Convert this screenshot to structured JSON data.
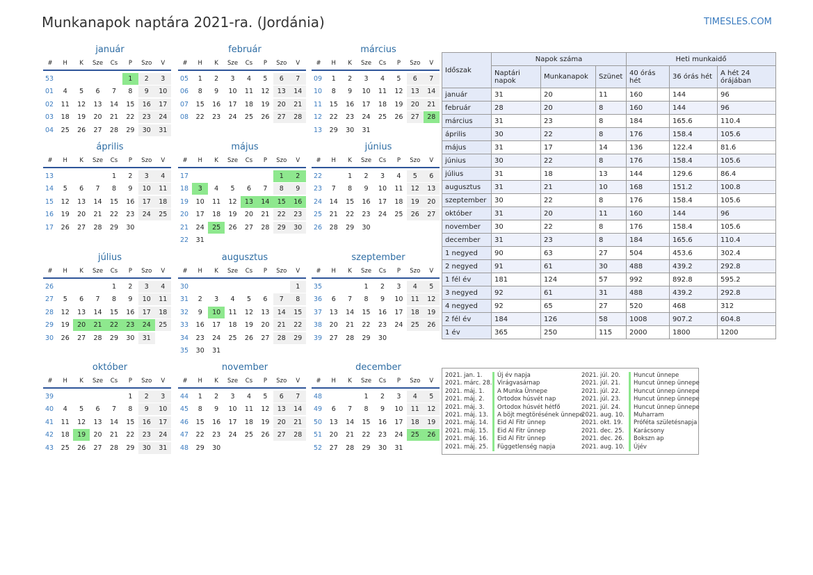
{
  "header": {
    "title": "Munkanapok naptára 2021-ra. (Jordánia)",
    "site": "TIMESLES.COM"
  },
  "weekday_headers": [
    "#",
    "H",
    "K",
    "Sze",
    "Cs",
    "P",
    "Szo",
    "V"
  ],
  "months": [
    {
      "name": "január",
      "weeks": [
        [
          53,
          "",
          "",
          "",
          "",
          1,
          2,
          3
        ],
        [
          "01",
          4,
          5,
          6,
          7,
          8,
          9,
          10
        ],
        [
          "02",
          11,
          12,
          13,
          14,
          15,
          16,
          17
        ],
        [
          "03",
          18,
          19,
          20,
          21,
          22,
          23,
          24
        ],
        [
          "04",
          25,
          26,
          27,
          28,
          29,
          30,
          31
        ]
      ],
      "holidays": [
        1
      ]
    },
    {
      "name": "február",
      "weeks": [
        [
          "05",
          1,
          2,
          3,
          4,
          5,
          6,
          7
        ],
        [
          "06",
          8,
          9,
          10,
          11,
          12,
          13,
          14
        ],
        [
          "07",
          15,
          16,
          17,
          18,
          19,
          20,
          21
        ],
        [
          "08",
          22,
          23,
          24,
          25,
          26,
          27,
          28
        ]
      ],
      "holidays": []
    },
    {
      "name": "március",
      "weeks": [
        [
          "09",
          1,
          2,
          3,
          4,
          5,
          6,
          7
        ],
        [
          10,
          8,
          9,
          10,
          11,
          12,
          13,
          14
        ],
        [
          11,
          15,
          16,
          17,
          18,
          19,
          20,
          21
        ],
        [
          12,
          22,
          23,
          24,
          25,
          26,
          27,
          28
        ],
        [
          13,
          29,
          30,
          31,
          "",
          "",
          "",
          ""
        ]
      ],
      "holidays": [
        28
      ]
    },
    {
      "name": "április",
      "weeks": [
        [
          13,
          "",
          "",
          "",
          1,
          2,
          3,
          4
        ],
        [
          14,
          5,
          6,
          7,
          8,
          9,
          10,
          11
        ],
        [
          15,
          12,
          13,
          14,
          15,
          16,
          17,
          18
        ],
        [
          16,
          19,
          20,
          21,
          22,
          23,
          24,
          25
        ],
        [
          17,
          26,
          27,
          28,
          29,
          30,
          "",
          ""
        ]
      ],
      "holidays": []
    },
    {
      "name": "május",
      "weeks": [
        [
          17,
          "",
          "",
          "",
          "",
          "",
          1,
          2
        ],
        [
          18,
          3,
          4,
          5,
          6,
          7,
          8,
          9
        ],
        [
          19,
          10,
          11,
          12,
          13,
          14,
          15,
          16
        ],
        [
          20,
          17,
          18,
          19,
          20,
          21,
          22,
          23
        ],
        [
          21,
          24,
          25,
          26,
          27,
          28,
          29,
          30
        ],
        [
          22,
          31,
          "",
          "",
          "",
          "",
          "",
          ""
        ]
      ],
      "holidays": [
        1,
        2,
        3,
        13,
        14,
        15,
        16,
        25
      ]
    },
    {
      "name": "június",
      "weeks": [
        [
          22,
          "",
          1,
          2,
          3,
          4,
          5,
          6
        ],
        [
          23,
          7,
          8,
          9,
          10,
          11,
          12,
          13
        ],
        [
          24,
          14,
          15,
          16,
          17,
          18,
          19,
          20
        ],
        [
          25,
          21,
          22,
          23,
          24,
          25,
          26,
          27
        ],
        [
          26,
          28,
          29,
          30,
          "",
          "",
          "",
          ""
        ]
      ],
      "holidays": []
    },
    {
      "name": "július",
      "weeks": [
        [
          26,
          "",
          "",
          "",
          1,
          2,
          3,
          4
        ],
        [
          27,
          5,
          6,
          7,
          8,
          9,
          10,
          11
        ],
        [
          28,
          12,
          13,
          14,
          15,
          16,
          17,
          18
        ],
        [
          29,
          19,
          20,
          21,
          22,
          23,
          24,
          25
        ],
        [
          30,
          26,
          27,
          28,
          29,
          30,
          31,
          ""
        ]
      ],
      "holidays": [
        20,
        21,
        22,
        23,
        24
      ]
    },
    {
      "name": "augusztus",
      "weeks": [
        [
          30,
          "",
          "",
          "",
          "",
          "",
          "",
          1
        ],
        [
          31,
          2,
          3,
          4,
          5,
          6,
          7,
          8
        ],
        [
          32,
          9,
          10,
          11,
          12,
          13,
          14,
          15
        ],
        [
          33,
          16,
          17,
          18,
          19,
          20,
          21,
          22
        ],
        [
          34,
          23,
          24,
          25,
          26,
          27,
          28,
          29
        ],
        [
          35,
          30,
          31,
          "",
          "",
          "",
          "",
          ""
        ]
      ],
      "holidays": [
        10
      ]
    },
    {
      "name": "szeptember",
      "weeks": [
        [
          35,
          "",
          "",
          1,
          2,
          3,
          4,
          5
        ],
        [
          36,
          6,
          7,
          8,
          9,
          10,
          11,
          12
        ],
        [
          37,
          13,
          14,
          15,
          16,
          17,
          18,
          19
        ],
        [
          38,
          20,
          21,
          22,
          23,
          24,
          25,
          26
        ],
        [
          39,
          27,
          28,
          29,
          30,
          "",
          "",
          ""
        ]
      ],
      "holidays": []
    },
    {
      "name": "október",
      "weeks": [
        [
          39,
          "",
          "",
          "",
          "",
          1,
          2,
          3
        ],
        [
          40,
          4,
          5,
          6,
          7,
          8,
          9,
          10
        ],
        [
          41,
          11,
          12,
          13,
          14,
          15,
          16,
          17
        ],
        [
          42,
          18,
          19,
          20,
          21,
          22,
          23,
          24
        ],
        [
          43,
          25,
          26,
          27,
          28,
          29,
          30,
          31
        ]
      ],
      "holidays": [
        19
      ]
    },
    {
      "name": "november",
      "weeks": [
        [
          44,
          1,
          2,
          3,
          4,
          5,
          6,
          7
        ],
        [
          45,
          8,
          9,
          10,
          11,
          12,
          13,
          14
        ],
        [
          46,
          15,
          16,
          17,
          18,
          19,
          20,
          21
        ],
        [
          47,
          22,
          23,
          24,
          25,
          26,
          27,
          28
        ],
        [
          48,
          29,
          30,
          "",
          "",
          "",
          "",
          ""
        ]
      ],
      "holidays": []
    },
    {
      "name": "december",
      "weeks": [
        [
          48,
          "",
          "",
          1,
          2,
          3,
          4,
          5
        ],
        [
          49,
          6,
          7,
          8,
          9,
          10,
          11,
          12
        ],
        [
          50,
          13,
          14,
          15,
          16,
          17,
          18,
          19
        ],
        [
          51,
          20,
          21,
          22,
          23,
          24,
          25,
          26
        ],
        [
          52,
          27,
          28,
          29,
          30,
          31,
          "",
          ""
        ]
      ],
      "holidays": [
        25,
        26
      ]
    }
  ],
  "stats": {
    "period_label": "Időszak",
    "group1": "Napok száma",
    "group2": "Heti munkaidő",
    "cols": [
      "Naptári napok",
      "Munkanapok",
      "Szünet",
      "40 órás hét",
      "36 órás hét",
      "A hét 24 órájában"
    ],
    "rows": [
      [
        "január",
        "31",
        "20",
        "11",
        "160",
        "144",
        "96"
      ],
      [
        "február",
        "28",
        "20",
        "8",
        "160",
        "144",
        "96"
      ],
      [
        "március",
        "31",
        "23",
        "8",
        "184",
        "165.6",
        "110.4"
      ],
      [
        "április",
        "30",
        "22",
        "8",
        "176",
        "158.4",
        "105.6"
      ],
      [
        "május",
        "31",
        "17",
        "14",
        "136",
        "122.4",
        "81.6"
      ],
      [
        "június",
        "30",
        "22",
        "8",
        "176",
        "158.4",
        "105.6"
      ],
      [
        "július",
        "31",
        "18",
        "13",
        "144",
        "129.6",
        "86.4"
      ],
      [
        "augusztus",
        "31",
        "21",
        "10",
        "168",
        "151.2",
        "100.8"
      ],
      [
        "szeptember",
        "30",
        "22",
        "8",
        "176",
        "158.4",
        "105.6"
      ],
      [
        "október",
        "31",
        "20",
        "11",
        "160",
        "144",
        "96"
      ],
      [
        "november",
        "30",
        "22",
        "8",
        "176",
        "158.4",
        "105.6"
      ],
      [
        "december",
        "31",
        "23",
        "8",
        "184",
        "165.6",
        "110.4"
      ],
      [
        "1 negyed",
        "90",
        "63",
        "27",
        "504",
        "453.6",
        "302.4"
      ],
      [
        "2 negyed",
        "91",
        "61",
        "30",
        "488",
        "439.2",
        "292.8"
      ],
      [
        "1 fél év",
        "181",
        "124",
        "57",
        "992",
        "892.8",
        "595.2"
      ],
      [
        "3 negyed",
        "92",
        "61",
        "31",
        "488",
        "439.2",
        "292.8"
      ],
      [
        "4 negyed",
        "92",
        "65",
        "27",
        "520",
        "468",
        "312"
      ],
      [
        "2 fél év",
        "184",
        "126",
        "58",
        "1008",
        "907.2",
        "604.8"
      ],
      [
        "1 év",
        "365",
        "250",
        "115",
        "2000",
        "1800",
        "1200"
      ]
    ]
  },
  "holidays_list": {
    "left": [
      [
        "2021. jan. 1.",
        "Új év napja"
      ],
      [
        "2021. márc. 28.",
        "Virágvasárnap"
      ],
      [
        "2021. máj. 1.",
        "A Munka Ünnepe"
      ],
      [
        "2021. máj. 2.",
        "Ortodox húsvét nap"
      ],
      [
        "2021. máj. 3.",
        "Ortodox húsvét hétfő"
      ],
      [
        "2021. máj. 13.",
        "A böjt megtörésének ünnepe"
      ],
      [
        "2021. máj. 14.",
        "Eid Al Fitr ünnep"
      ],
      [
        "2021. máj. 15.",
        "Eid Al Fitr ünnep"
      ],
      [
        "2021. máj. 16.",
        "Eid Al Fitr ünnep"
      ],
      [
        "2021. máj. 25.",
        "Függetlenség napja"
      ]
    ],
    "right": [
      [
        "2021. júl. 20.",
        "Huncut ünnepe"
      ],
      [
        "2021. júl. 21.",
        "Huncut ünnep ünnepe"
      ],
      [
        "2021. júl. 22.",
        "Huncut ünnep ünnepe"
      ],
      [
        "2021. júl. 23.",
        "Huncut ünnep ünnepe"
      ],
      [
        "2021. júl. 24.",
        "Huncut ünnep ünnepe"
      ],
      [
        "2021. aug. 10.",
        "Muharram"
      ],
      [
        "2021. okt. 19.",
        "Próféta születésnapja"
      ],
      [
        "2021. dec. 25.",
        "Karácsony"
      ],
      [
        "2021. dec. 26.",
        "Bokszn ap"
      ],
      [
        "2021. aug. 10.",
        "Újév"
      ]
    ]
  }
}
